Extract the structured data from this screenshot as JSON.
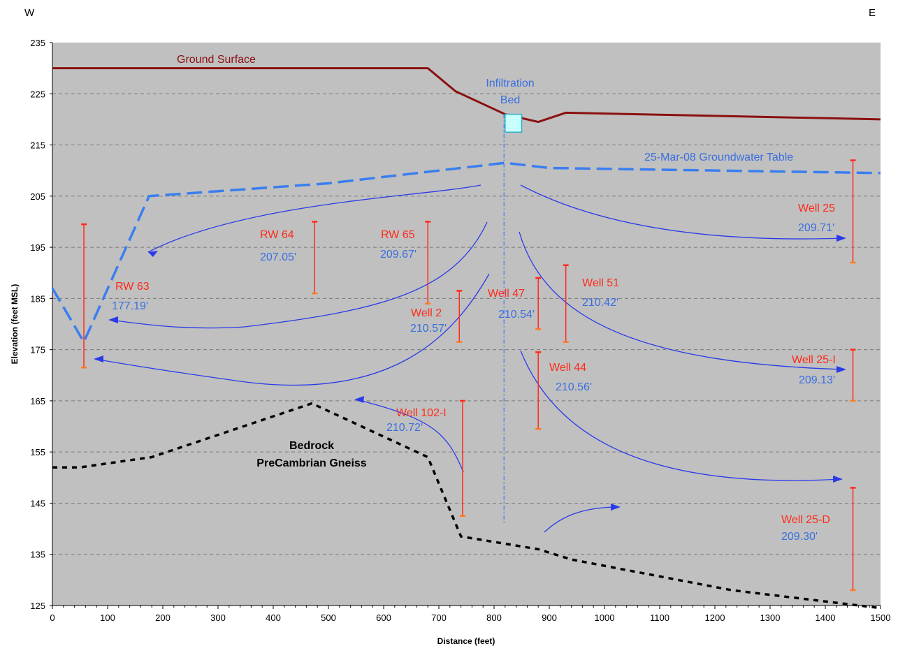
{
  "compass": {
    "west": "W",
    "east": "E"
  },
  "axes": {
    "xlabel": "Distance (feet)",
    "ylabel": "Elevation (feet MSL)",
    "xlim": [
      0,
      1500
    ],
    "ylim": [
      125,
      235
    ],
    "xticks": [
      0,
      100,
      200,
      300,
      400,
      500,
      600,
      700,
      800,
      900,
      1000,
      1100,
      1200,
      1300,
      1400,
      1500
    ],
    "yticks": [
      125,
      135,
      145,
      155,
      165,
      175,
      185,
      195,
      205,
      215,
      225,
      235
    ]
  },
  "colors": {
    "plot_bg": "#c0c0c0",
    "ground": "#8b1010",
    "water": "#3a7ef0",
    "flow": "#2a3ae8",
    "well": "#ff2a1a",
    "bedrock": "#000000",
    "bed_fill": "#c8ffff"
  },
  "labels": {
    "ground_surface": "Ground Surface",
    "infiltration_line1": "Infiltration",
    "infiltration_line2": "Bed",
    "groundwater_table": "25-Mar-08 Groundwater Table",
    "bedrock_line1": "Bedrock",
    "bedrock_line2": "PreCambrian Gneiss"
  },
  "chart_data": {
    "type": "line",
    "ground_surface": [
      [
        0,
        230
      ],
      [
        680,
        230
      ],
      [
        730,
        225.5
      ],
      [
        820,
        221
      ],
      [
        880,
        219.5
      ],
      [
        930,
        221.3
      ],
      [
        1500,
        220
      ]
    ],
    "groundwater_table": [
      [
        0,
        187
      ],
      [
        57,
        176.5
      ],
      [
        175,
        205
      ],
      [
        500,
        207.5
      ],
      [
        820,
        211.5
      ],
      [
        900,
        210.5
      ],
      [
        1500,
        209.5
      ]
    ],
    "bedrock": [
      [
        0,
        152
      ],
      [
        50,
        152
      ],
      [
        180,
        154
      ],
      [
        470,
        164.5
      ],
      [
        680,
        154
      ],
      [
        740,
        138.5
      ],
      [
        880,
        136
      ],
      [
        940,
        134
      ],
      [
        1230,
        128
      ],
      [
        1500,
        124.5
      ]
    ],
    "infiltration_line": {
      "x": 818,
      "y_top": 221,
      "y_bottom": 141
    },
    "infiltration_bed": {
      "x": [
        820,
        850
      ],
      "y": [
        217.5,
        221
      ]
    },
    "wells": [
      {
        "name": "RW 63",
        "value": "177.19'",
        "x": 57,
        "top": 199.5,
        "bottom": 171.5
      },
      {
        "name": "RW 64",
        "value": "207.05'",
        "x": 475,
        "top": 200,
        "bottom": 186
      },
      {
        "name": "RW 65",
        "value": "209.67'",
        "x": 680,
        "top": 200,
        "bottom": 184
      },
      {
        "name": "Well 2",
        "value": "210.57'",
        "x": 737,
        "top": 186.5,
        "bottom": 176.5
      },
      {
        "name": "Well 47",
        "value": "210.54'",
        "x": 880,
        "top": 189,
        "bottom": 179
      },
      {
        "name": "Well 51",
        "value": "210.42'",
        "x": 930,
        "top": 191.5,
        "bottom": 176.5
      },
      {
        "name": "Well 44",
        "value": "210.56'",
        "x": 880,
        "top": 174.5,
        "bottom": 159.5
      },
      {
        "name": "Well 102-I",
        "value": "210.72'",
        "x": 743,
        "top": 165,
        "bottom": 142.5
      },
      {
        "name": "Well 25",
        "value": "209.71'",
        "x": 1450,
        "top": 212,
        "bottom": 192
      },
      {
        "name": "Well 25-I",
        "value": "209.13'",
        "x": 1450,
        "top": 175,
        "bottom": 165
      },
      {
        "name": "Well 25-D",
        "value": "209.30'",
        "x": 1450,
        "top": 148,
        "bottom": 128
      }
    ]
  }
}
